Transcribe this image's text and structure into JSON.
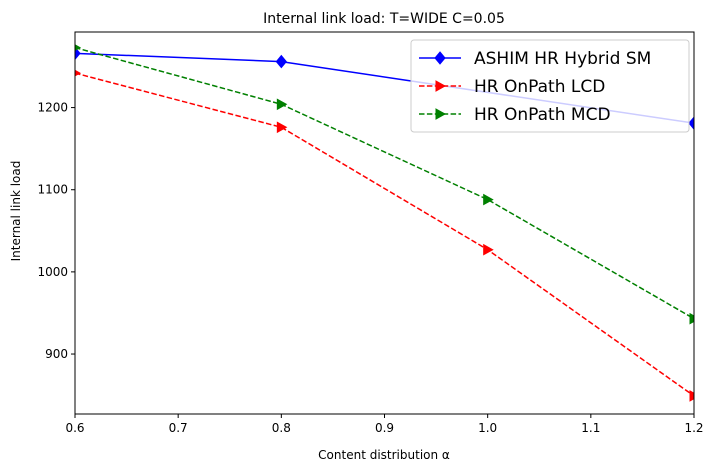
{
  "chart_data": {
    "type": "line",
    "title": "Internal link load: T=WIDE C=0.05",
    "xlabel": "Content distribution α",
    "ylabel": "Internal link load",
    "xlim": [
      0.6,
      1.2
    ],
    "ylim": [
      827,
      1292
    ],
    "xticks": [
      "0.6",
      "0.7",
      "0.8",
      "0.9",
      "1.0",
      "1.1",
      "1.2"
    ],
    "yticks": [
      "900",
      "1000",
      "1100",
      "1200"
    ],
    "grid": false,
    "legend_position": "top-right",
    "series": [
      {
        "name": "ASHIM HR Hybrid SM",
        "color": "#0000ff",
        "line_style": "solid",
        "marker": "diamond",
        "x": [
          0.6,
          0.8,
          1.2
        ],
        "y": [
          1266,
          1256,
          1181
        ]
      },
      {
        "name": "HR OnPath LCD",
        "color": "#ff0000",
        "line_style": "dashed",
        "marker": "triangle-right",
        "x": [
          0.6,
          0.8,
          1.0,
          1.2
        ],
        "y": [
          1242,
          1176,
          1027,
          849
        ]
      },
      {
        "name": "HR OnPath MCD",
        "color": "#008000",
        "line_style": "dashed",
        "marker": "triangle-right",
        "x": [
          0.6,
          0.8,
          1.0,
          1.2
        ],
        "y": [
          1273,
          1204,
          1088,
          943
        ]
      }
    ]
  }
}
